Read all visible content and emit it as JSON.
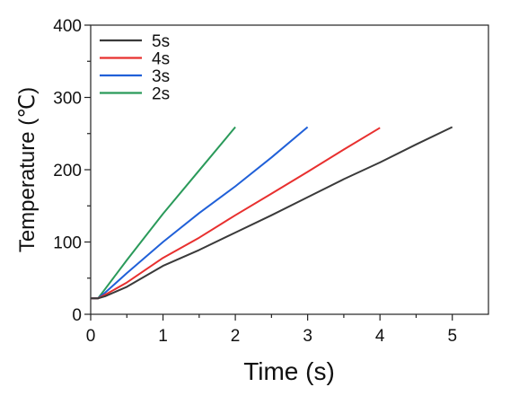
{
  "chart_data": {
    "type": "line",
    "title": "",
    "xlabel": "Time (s)",
    "ylabel": "Temperature (℃)",
    "xlim": [
      0,
      5.5
    ],
    "ylim": [
      0,
      400
    ],
    "xticks": [
      "0",
      "1",
      "2",
      "3",
      "4",
      "5"
    ],
    "yticks": [
      "0",
      "100",
      "200",
      "300",
      "400"
    ],
    "grid": false,
    "legend": "top-left",
    "series": [
      {
        "name": "5s",
        "color": "#3a3a3a",
        "x": [
          0,
          0.1,
          0.2,
          0.5,
          1.0,
          1.5,
          2.0,
          2.5,
          3.0,
          3.5,
          4.0,
          4.5,
          5.0
        ],
        "y": [
          22,
          22,
          25,
          38,
          67,
          89,
          113,
          137,
          162,
          187,
          210,
          235,
          259
        ]
      },
      {
        "name": "4s",
        "color": "#e8302f",
        "x": [
          0,
          0.1,
          0.2,
          0.5,
          1.0,
          1.5,
          2.0,
          2.5,
          3.0,
          3.5,
          4.0
        ],
        "y": [
          22,
          22,
          27,
          44,
          78,
          106,
          137,
          167,
          197,
          228,
          258
        ]
      },
      {
        "name": "3s",
        "color": "#2060d8",
        "x": [
          0,
          0.1,
          0.2,
          0.5,
          1.0,
          1.5,
          2.0,
          2.5,
          3.0
        ],
        "y": [
          22,
          22,
          30,
          57,
          100,
          140,
          177,
          217,
          259
        ]
      },
      {
        "name": "2s",
        "color": "#2a9a5a",
        "x": [
          0,
          0.1,
          0.2,
          0.5,
          1.0,
          1.5,
          2.0
        ],
        "y": [
          22,
          22,
          35,
          75,
          139,
          199,
          259
        ]
      }
    ]
  }
}
